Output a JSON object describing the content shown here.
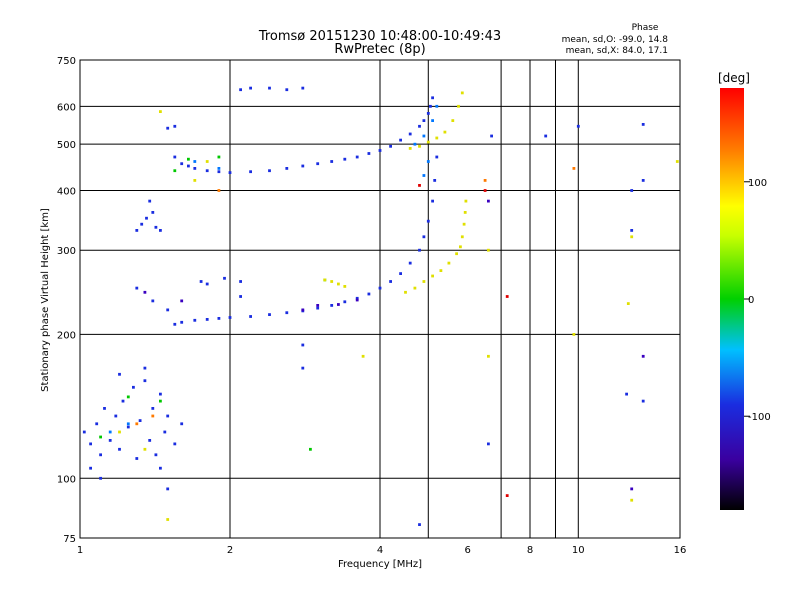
{
  "chart_data": {
    "type": "scatter",
    "title": "Tromsø 20151230 10:48:00-10:49:43",
    "subtitle": "RwPretec (8p)",
    "phase_info": {
      "header": "Phase",
      "line1": "mean, sd,O: -99.0, 14.8",
      "line2": "mean, sd,X: 84.0, 17.1"
    },
    "xlabel": "Frequency [MHz]",
    "ylabel": "Stationary phase Virtual Height [km]",
    "x_scale": "log",
    "y_scale": "log",
    "xlim": [
      1,
      16
    ],
    "ylim": [
      75,
      750
    ],
    "x_ticks": [
      {
        "v": 1,
        "label": "1"
      },
      {
        "v": 2,
        "label": "2"
      },
      {
        "v": 4,
        "label": "4"
      },
      {
        "v": 6,
        "label": "6"
      },
      {
        "v": 8,
        "label": "8"
      },
      {
        "v": 10,
        "label": "10"
      },
      {
        "v": 16,
        "label": "16"
      }
    ],
    "x_grid": [
      2,
      4,
      5,
      7,
      8,
      9,
      10
    ],
    "y_ticks": [
      {
        "v": 75,
        "label": "75"
      },
      {
        "v": 100,
        "label": "100"
      },
      {
        "v": 200,
        "label": "200"
      },
      {
        "v": 300,
        "label": "300"
      },
      {
        "v": 400,
        "label": "400"
      },
      {
        "v": 500,
        "label": "500"
      },
      {
        "v": 600,
        "label": "600"
      },
      {
        "v": 750,
        "label": "750"
      }
    ],
    "y_grid": [
      100,
      200,
      300,
      400,
      500,
      600
    ],
    "grid": true,
    "colorbar": {
      "label": "[deg]",
      "range": [
        -180,
        180
      ],
      "ticks": [
        {
          "v": 100,
          "label": "100"
        },
        {
          "v": 0,
          "label": "0"
        },
        {
          "v": -100,
          "label": "-100"
        }
      ]
    },
    "series": [
      {
        "phase": -99,
        "color": "#1a2de0",
        "points": [
          [
            1.55,
            470
          ],
          [
            1.6,
            455
          ],
          [
            1.65,
            450
          ],
          [
            1.7,
            445
          ],
          [
            1.8,
            440
          ],
          [
            1.9,
            438
          ],
          [
            2.0,
            436
          ],
          [
            2.2,
            438
          ],
          [
            2.4,
            440
          ],
          [
            2.6,
            445
          ],
          [
            2.8,
            450
          ],
          [
            3.0,
            455
          ],
          [
            3.2,
            460
          ],
          [
            3.4,
            465
          ],
          [
            3.6,
            470
          ],
          [
            3.8,
            478
          ],
          [
            4.0,
            485
          ],
          [
            4.2,
            495
          ],
          [
            4.4,
            510
          ],
          [
            4.6,
            525
          ],
          [
            4.8,
            545
          ],
          [
            4.9,
            560
          ],
          [
            5.0,
            580
          ],
          [
            5.05,
            600
          ],
          [
            5.1,
            625
          ],
          [
            1.55,
            210
          ],
          [
            1.6,
            212
          ],
          [
            1.7,
            214
          ],
          [
            1.8,
            215
          ],
          [
            1.9,
            216
          ],
          [
            2.0,
            217
          ],
          [
            2.2,
            218
          ],
          [
            2.4,
            220
          ],
          [
            2.6,
            222
          ],
          [
            2.8,
            224
          ],
          [
            3.0,
            227
          ],
          [
            3.2,
            230
          ],
          [
            3.4,
            234
          ],
          [
            3.6,
            238
          ],
          [
            3.8,
            243
          ],
          [
            4.0,
            250
          ],
          [
            4.2,
            258
          ],
          [
            4.4,
            268
          ],
          [
            4.6,
            282
          ],
          [
            4.8,
            300
          ],
          [
            4.9,
            320
          ],
          [
            5.0,
            345
          ],
          [
            5.1,
            380
          ],
          [
            5.15,
            420
          ],
          [
            5.2,
            470
          ],
          [
            1.3,
            330
          ],
          [
            1.33,
            340
          ],
          [
            1.36,
            350
          ],
          [
            1.4,
            360
          ],
          [
            1.42,
            335
          ],
          [
            1.45,
            330
          ],
          [
            1.38,
            380
          ],
          [
            1.3,
            250
          ],
          [
            1.4,
            235
          ],
          [
            1.5,
            225
          ],
          [
            1.75,
            258
          ],
          [
            1.8,
            255
          ],
          [
            1.95,
            262
          ],
          [
            2.1,
            258
          ],
          [
            2.1,
            240
          ],
          [
            2.1,
            650
          ],
          [
            2.2,
            655
          ],
          [
            2.4,
            655
          ],
          [
            2.6,
            650
          ],
          [
            2.8,
            655
          ],
          [
            1.5,
            540
          ],
          [
            1.55,
            545
          ],
          [
            1.02,
            125
          ],
          [
            1.05,
            118
          ],
          [
            1.08,
            130
          ],
          [
            1.1,
            112
          ],
          [
            1.12,
            140
          ],
          [
            1.15,
            120
          ],
          [
            1.18,
            135
          ],
          [
            1.2,
            115
          ],
          [
            1.22,
            145
          ],
          [
            1.25,
            128
          ],
          [
            1.28,
            155
          ],
          [
            1.3,
            110
          ],
          [
            1.32,
            132
          ],
          [
            1.35,
            160
          ],
          [
            1.38,
            120
          ],
          [
            1.4,
            140
          ],
          [
            1.42,
            112
          ],
          [
            1.45,
            150
          ],
          [
            1.48,
            125
          ],
          [
            1.5,
            135
          ],
          [
            1.55,
            118
          ],
          [
            1.6,
            130
          ],
          [
            1.05,
            105
          ],
          [
            1.1,
            100
          ],
          [
            1.2,
            165
          ],
          [
            1.35,
            170
          ],
          [
            1.45,
            105
          ],
          [
            1.5,
            95
          ],
          [
            2.8,
            190
          ],
          [
            2.8,
            170
          ],
          [
            6.6,
            118
          ],
          [
            6.7,
            520
          ],
          [
            12.5,
            150
          ],
          [
            12.8,
            400
          ],
          [
            13.5,
            145
          ],
          [
            13.5,
            420
          ],
          [
            10.0,
            545
          ],
          [
            8.6,
            520
          ],
          [
            13.5,
            550
          ],
          [
            12.8,
            330
          ],
          [
            4.8,
            80
          ]
        ]
      },
      {
        "phase": -130,
        "color": "#3a00c0",
        "points": [
          [
            3.0,
            230
          ],
          [
            3.3,
            231
          ],
          [
            3.6,
            236
          ],
          [
            2.8,
            225
          ],
          [
            1.35,
            245
          ],
          [
            1.6,
            235
          ],
          [
            13.5,
            180
          ],
          [
            12.8,
            95
          ],
          [
            6.6,
            380
          ]
        ]
      },
      {
        "phase": -60,
        "color": "#0077ff",
        "points": [
          [
            4.7,
            500
          ],
          [
            4.9,
            520
          ],
          [
            5.1,
            560
          ],
          [
            5.2,
            600
          ],
          [
            4.9,
            430
          ],
          [
            5.0,
            460
          ],
          [
            1.7,
            460
          ],
          [
            1.9,
            445
          ],
          [
            1.25,
            130
          ],
          [
            1.15,
            125
          ]
        ]
      },
      {
        "phase": 0,
        "color": "#00c800",
        "points": [
          [
            1.9,
            470
          ],
          [
            1.1,
            122
          ],
          [
            1.25,
            148
          ],
          [
            1.45,
            145
          ],
          [
            1.55,
            440
          ],
          [
            2.9,
            115
          ],
          [
            3.1,
            260
          ],
          [
            1.65,
            465
          ]
        ]
      },
      {
        "phase": 84,
        "color": "#e0e000",
        "points": [
          [
            4.5,
            245
          ],
          [
            4.7,
            250
          ],
          [
            4.9,
            258
          ],
          [
            5.1,
            265
          ],
          [
            5.3,
            272
          ],
          [
            5.5,
            282
          ],
          [
            5.7,
            295
          ],
          [
            5.8,
            305
          ],
          [
            5.85,
            320
          ],
          [
            5.9,
            340
          ],
          [
            5.93,
            360
          ],
          [
            5.95,
            380
          ],
          [
            4.6,
            490
          ],
          [
            4.8,
            495
          ],
          [
            5.0,
            505
          ],
          [
            5.2,
            515
          ],
          [
            5.4,
            530
          ],
          [
            5.6,
            560
          ],
          [
            5.75,
            600
          ],
          [
            5.85,
            640
          ],
          [
            3.1,
            260
          ],
          [
            3.2,
            258
          ],
          [
            3.3,
            255
          ],
          [
            3.4,
            252
          ],
          [
            1.45,
            585
          ],
          [
            1.35,
            115
          ],
          [
            1.2,
            125
          ],
          [
            1.5,
            82
          ],
          [
            6.6,
            180
          ],
          [
            6.6,
            300
          ],
          [
            9.8,
            200
          ],
          [
            12.6,
            232
          ],
          [
            12.8,
            90
          ],
          [
            12.8,
            320
          ],
          [
            15.8,
            460
          ],
          [
            3.7,
            180
          ],
          [
            1.7,
            420
          ],
          [
            1.8,
            460
          ]
        ]
      },
      {
        "phase": 140,
        "color": "#ff7a00",
        "points": [
          [
            1.9,
            400
          ],
          [
            1.3,
            130
          ],
          [
            1.4,
            135
          ],
          [
            6.5,
            420
          ],
          [
            9.8,
            445
          ]
        ]
      },
      {
        "phase": 170,
        "color": "#e00000",
        "points": [
          [
            7.2,
            240
          ],
          [
            7.2,
            92
          ],
          [
            4.8,
            410
          ],
          [
            6.5,
            400
          ]
        ]
      }
    ]
  }
}
